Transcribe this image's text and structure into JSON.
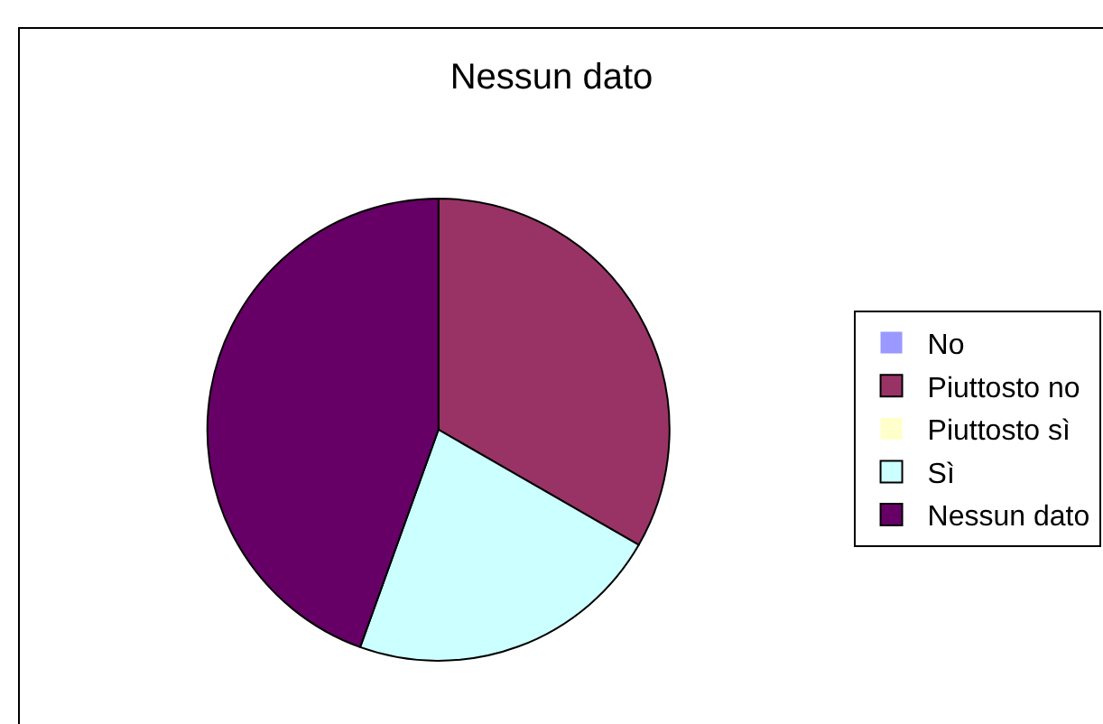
{
  "chart_data": {
    "type": "pie",
    "title": "Nessun dato",
    "categories": [
      "No",
      "Piuttosto no",
      "Piuttosto sì",
      "Sì",
      "Nessun dato"
    ],
    "values": [
      0,
      33.3,
      0,
      22.2,
      44.5
    ],
    "colors": [
      "#9999ff",
      "#993366",
      "#ffffcc",
      "#ccffff",
      "#660066"
    ],
    "legend": "right"
  }
}
